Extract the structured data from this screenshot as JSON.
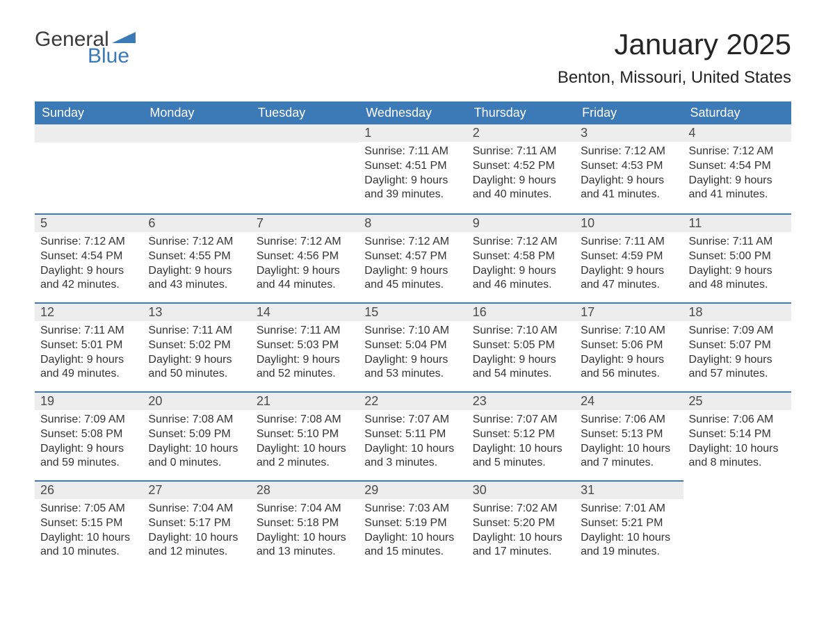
{
  "logo": {
    "text1": "General",
    "text2": "Blue",
    "tri_color": "#3b79b7"
  },
  "title": "January 2025",
  "location": "Benton, Missouri, United States",
  "colors": {
    "header_bg": "#3b79b7",
    "header_text": "#ffffff",
    "daynum_bg": "#ededed",
    "border": "#3b79b7",
    "body_text": "#333333"
  },
  "weekdays": [
    "Sunday",
    "Monday",
    "Tuesday",
    "Wednesday",
    "Thursday",
    "Friday",
    "Saturday"
  ],
  "weeks": [
    [
      null,
      null,
      null,
      {
        "n": "1",
        "sr": "7:11 AM",
        "ss": "4:51 PM",
        "dl": "9 hours and 39 minutes."
      },
      {
        "n": "2",
        "sr": "7:11 AM",
        "ss": "4:52 PM",
        "dl": "9 hours and 40 minutes."
      },
      {
        "n": "3",
        "sr": "7:12 AM",
        "ss": "4:53 PM",
        "dl": "9 hours and 41 minutes."
      },
      {
        "n": "4",
        "sr": "7:12 AM",
        "ss": "4:54 PM",
        "dl": "9 hours and 41 minutes."
      }
    ],
    [
      {
        "n": "5",
        "sr": "7:12 AM",
        "ss": "4:54 PM",
        "dl": "9 hours and 42 minutes."
      },
      {
        "n": "6",
        "sr": "7:12 AM",
        "ss": "4:55 PM",
        "dl": "9 hours and 43 minutes."
      },
      {
        "n": "7",
        "sr": "7:12 AM",
        "ss": "4:56 PM",
        "dl": "9 hours and 44 minutes."
      },
      {
        "n": "8",
        "sr": "7:12 AM",
        "ss": "4:57 PM",
        "dl": "9 hours and 45 minutes."
      },
      {
        "n": "9",
        "sr": "7:12 AM",
        "ss": "4:58 PM",
        "dl": "9 hours and 46 minutes."
      },
      {
        "n": "10",
        "sr": "7:11 AM",
        "ss": "4:59 PM",
        "dl": "9 hours and 47 minutes."
      },
      {
        "n": "11",
        "sr": "7:11 AM",
        "ss": "5:00 PM",
        "dl": "9 hours and 48 minutes."
      }
    ],
    [
      {
        "n": "12",
        "sr": "7:11 AM",
        "ss": "5:01 PM",
        "dl": "9 hours and 49 minutes."
      },
      {
        "n": "13",
        "sr": "7:11 AM",
        "ss": "5:02 PM",
        "dl": "9 hours and 50 minutes."
      },
      {
        "n": "14",
        "sr": "7:11 AM",
        "ss": "5:03 PM",
        "dl": "9 hours and 52 minutes."
      },
      {
        "n": "15",
        "sr": "7:10 AM",
        "ss": "5:04 PM",
        "dl": "9 hours and 53 minutes."
      },
      {
        "n": "16",
        "sr": "7:10 AM",
        "ss": "5:05 PM",
        "dl": "9 hours and 54 minutes."
      },
      {
        "n": "17",
        "sr": "7:10 AM",
        "ss": "5:06 PM",
        "dl": "9 hours and 56 minutes."
      },
      {
        "n": "18",
        "sr": "7:09 AM",
        "ss": "5:07 PM",
        "dl": "9 hours and 57 minutes."
      }
    ],
    [
      {
        "n": "19",
        "sr": "7:09 AM",
        "ss": "5:08 PM",
        "dl": "9 hours and 59 minutes."
      },
      {
        "n": "20",
        "sr": "7:08 AM",
        "ss": "5:09 PM",
        "dl": "10 hours and 0 minutes."
      },
      {
        "n": "21",
        "sr": "7:08 AM",
        "ss": "5:10 PM",
        "dl": "10 hours and 2 minutes."
      },
      {
        "n": "22",
        "sr": "7:07 AM",
        "ss": "5:11 PM",
        "dl": "10 hours and 3 minutes."
      },
      {
        "n": "23",
        "sr": "7:07 AM",
        "ss": "5:12 PM",
        "dl": "10 hours and 5 minutes."
      },
      {
        "n": "24",
        "sr": "7:06 AM",
        "ss": "5:13 PM",
        "dl": "10 hours and 7 minutes."
      },
      {
        "n": "25",
        "sr": "7:06 AM",
        "ss": "5:14 PM",
        "dl": "10 hours and 8 minutes."
      }
    ],
    [
      {
        "n": "26",
        "sr": "7:05 AM",
        "ss": "5:15 PM",
        "dl": "10 hours and 10 minutes."
      },
      {
        "n": "27",
        "sr": "7:04 AM",
        "ss": "5:17 PM",
        "dl": "10 hours and 12 minutes."
      },
      {
        "n": "28",
        "sr": "7:04 AM",
        "ss": "5:18 PM",
        "dl": "10 hours and 13 minutes."
      },
      {
        "n": "29",
        "sr": "7:03 AM",
        "ss": "5:19 PM",
        "dl": "10 hours and 15 minutes."
      },
      {
        "n": "30",
        "sr": "7:02 AM",
        "ss": "5:20 PM",
        "dl": "10 hours and 17 minutes."
      },
      {
        "n": "31",
        "sr": "7:01 AM",
        "ss": "5:21 PM",
        "dl": "10 hours and 19 minutes."
      },
      null
    ]
  ],
  "labels": {
    "sunrise": "Sunrise: ",
    "sunset": "Sunset: ",
    "daylight": "Daylight: "
  }
}
